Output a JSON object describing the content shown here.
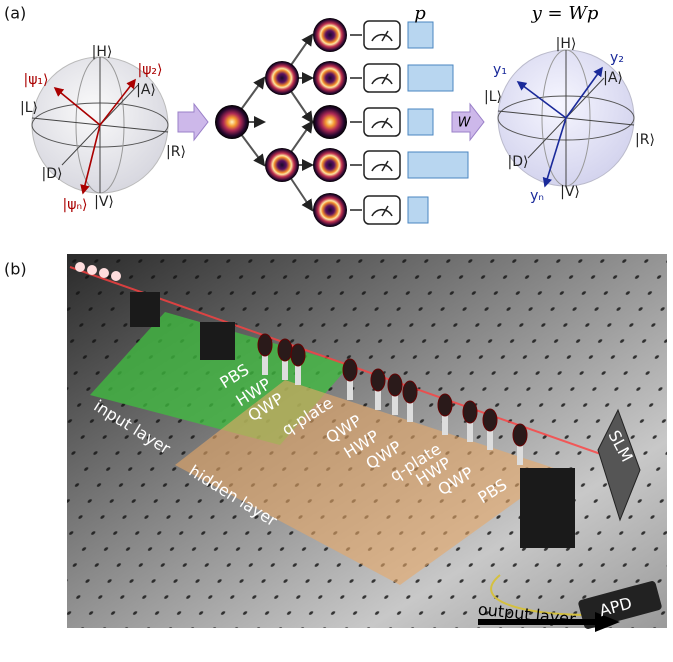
{
  "panel_a": {
    "label": "(a)",
    "input_sphere": {
      "states": [
        "|H⟩",
        "|A⟩",
        "|L⟩",
        "|R⟩",
        "|D⟩",
        "|V⟩"
      ],
      "vectors": [
        "|ψ₁⟩",
        "|ψ₂⟩",
        "|ψₙ⟩"
      ]
    },
    "w_label": "W",
    "p_label": "p",
    "output_equation": "y = Wp",
    "output_sphere": {
      "states": [
        "|H⟩",
        "|A⟩",
        "|L⟩",
        "|R⟩",
        "|D⟩",
        "|V⟩"
      ],
      "vectors": [
        "y₁",
        "y₂",
        "yₙ"
      ]
    }
  },
  "panel_b": {
    "label": "(b)",
    "components": [
      "PBS",
      "HWP",
      "QWP",
      "q-plate",
      "QWP",
      "HWP",
      "QWP",
      "q-plate",
      "HWP",
      "QWP",
      "PBS",
      "SLM",
      "APD"
    ],
    "layers": [
      "input layer",
      "hidden layer",
      "output layer"
    ]
  }
}
